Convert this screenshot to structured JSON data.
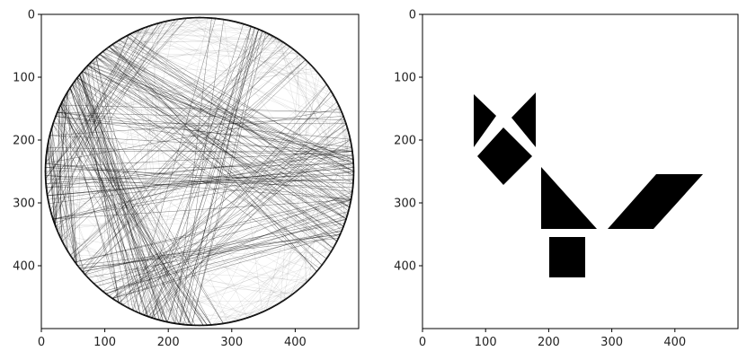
{
  "panels": [
    {
      "id": "left",
      "image": "string-art-circle",
      "xlim": [
        0,
        500
      ],
      "ylim": [
        500,
        0
      ],
      "xticks": [
        0,
        100,
        200,
        300,
        400
      ],
      "yticks": [
        0,
        100,
        200,
        300,
        400
      ]
    },
    {
      "id": "right",
      "image": "tangram-fox-silhouette",
      "xlim": [
        0,
        500
      ],
      "ylim": [
        500,
        0
      ],
      "xticks": [
        0,
        100,
        200,
        300,
        400
      ],
      "yticks": [
        0,
        100,
        200,
        300,
        400
      ]
    }
  ],
  "colors": {
    "ink": "#000000",
    "background": "#ffffff",
    "frame": "#000000",
    "text": "#222222"
  }
}
